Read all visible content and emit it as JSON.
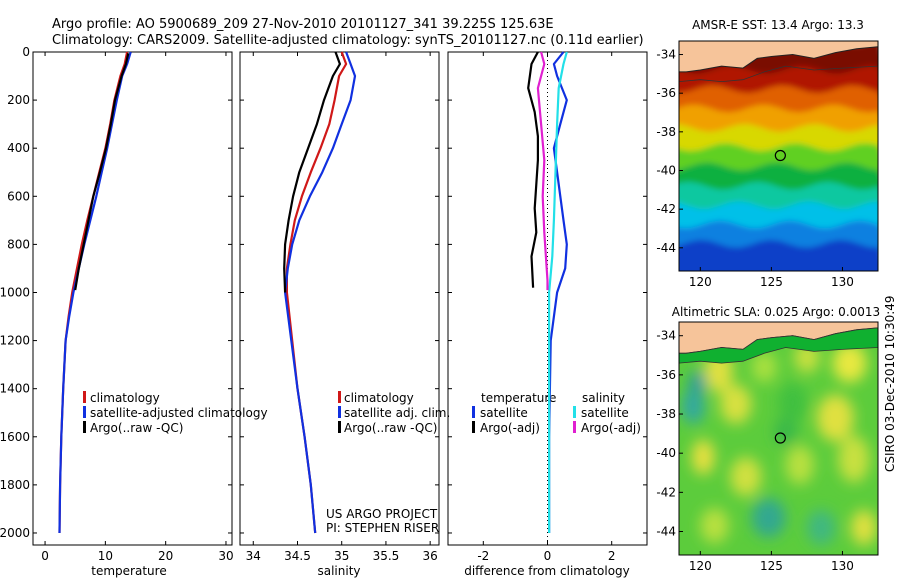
{
  "header": {
    "line1": "Argo profile: AO 5900689_209 27-Nov-2010 20101127_341 39.225S 125.63E",
    "line2": "Climatology: CARS2009. Satellite-adjusted climatology: synTS_20101127.nc (0.11d earlier)"
  },
  "footer": {
    "project": "US ARGO PROJECT",
    "pi": "PI: STEPHEN RISER",
    "stamp": "CSIRO 03-Dec-2010 10:30:49"
  },
  "colors": {
    "climatology": "#d01818",
    "satellite": "#1030e0",
    "argo": "#000000",
    "sat_sal": "#22e0e8",
    "argo_sal": "#e020d0",
    "land": "#f6c49a",
    "coast": "#222222"
  },
  "chart_data": [
    {
      "id": "temperature",
      "type": "line",
      "xlabel": "temperature",
      "ylabel": "",
      "xlim": [
        -2,
        31
      ],
      "ylim": [
        2050,
        0
      ],
      "xticks": [
        0,
        10,
        20,
        30
      ],
      "yticks": [
        0,
        200,
        400,
        600,
        800,
        1000,
        1200,
        1400,
        1600,
        1800,
        2000
      ],
      "legend": [
        "climatology",
        "satellite-adjusted climatology",
        "Argo(..raw -QC)"
      ],
      "series": [
        {
          "key": "climatology",
          "x": [
            13.6,
            13.2,
            12.5,
            11.5,
            10.8,
            10.0,
            9.0,
            8.0,
            7.0,
            6.1,
            5.3,
            4.5,
            3.9,
            3.4,
            3.0,
            2.7,
            2.5,
            2.4
          ],
          "y": [
            0,
            50,
            100,
            200,
            300,
            400,
            500,
            600,
            700,
            800,
            900,
            1000,
            1100,
            1200,
            1400,
            1600,
            1800,
            2000
          ]
        },
        {
          "key": "satellite",
          "x": [
            14.2,
            13.6,
            12.8,
            11.9,
            11.1,
            10.3,
            9.4,
            8.5,
            7.5,
            6.5,
            5.6,
            4.7,
            4.0,
            3.4,
            3.0,
            2.7,
            2.5,
            2.4
          ],
          "y": [
            0,
            50,
            100,
            200,
            300,
            400,
            500,
            600,
            700,
            800,
            900,
            1000,
            1100,
            1200,
            1400,
            1600,
            1800,
            2000
          ]
        },
        {
          "key": "argo",
          "x": [
            13.8,
            13.4,
            12.7,
            11.6,
            10.9,
            10.1,
            9.1,
            8.0,
            7.2,
            6.4,
            5.6,
            5.0
          ],
          "y": [
            5,
            50,
            100,
            200,
            300,
            400,
            500,
            600,
            700,
            800,
            900,
            990
          ]
        }
      ]
    },
    {
      "id": "salinity",
      "type": "line",
      "xlabel": "salinity",
      "ylabel": "",
      "xlim": [
        33.85,
        36.1
      ],
      "ylim": [
        2050,
        0
      ],
      "xticks": [
        34,
        34.5,
        35,
        35.5,
        36
      ],
      "legend": [
        "climatology",
        "satellite adj. clim.",
        "Argo(..raw -QC)"
      ],
      "series": [
        {
          "key": "climatology",
          "x": [
            35.0,
            35.05,
            34.97,
            34.92,
            34.86,
            34.76,
            34.65,
            34.55,
            34.47,
            34.42,
            34.38,
            34.38,
            34.44,
            34.5,
            34.58,
            34.65,
            34.7
          ],
          "y": [
            0,
            50,
            100,
            200,
            300,
            400,
            500,
            600,
            700,
            800,
            900,
            1000,
            1200,
            1400,
            1600,
            1800,
            2000
          ]
        },
        {
          "key": "satellite",
          "x": [
            35.05,
            35.1,
            35.15,
            35.1,
            35.0,
            34.9,
            34.78,
            34.64,
            34.52,
            34.44,
            34.39,
            34.36,
            34.43,
            34.5,
            34.58,
            34.65,
            34.7
          ],
          "y": [
            0,
            50,
            100,
            200,
            300,
            400,
            500,
            600,
            700,
            800,
            900,
            1000,
            1200,
            1400,
            1600,
            1800,
            2000
          ]
        },
        {
          "key": "argo",
          "x": [
            34.93,
            34.98,
            34.9,
            34.8,
            34.72,
            34.62,
            34.52,
            34.45,
            34.4,
            34.36,
            34.35,
            34.36
          ],
          "y": [
            0,
            50,
            100,
            200,
            300,
            400,
            500,
            600,
            700,
            800,
            900,
            1000
          ]
        }
      ]
    },
    {
      "id": "difference",
      "type": "line",
      "xlabel": "difference from climatology",
      "ylabel": "",
      "xlim": [
        -3.1,
        3.1
      ],
      "ylim": [
        2050,
        0
      ],
      "xticks": [
        -2,
        0,
        2
      ],
      "legend_temp": [
        "temperature",
        "satellite",
        "Argo(-adj)"
      ],
      "legend_sal": [
        "salinity",
        "satellite",
        "Argo(-adj)"
      ],
      "series": [
        {
          "key": "satellite",
          "x": [
            0.5,
            0.2,
            0.3,
            0.6,
            0.4,
            0.2,
            0.3,
            0.4,
            0.5,
            0.6,
            0.55,
            0.3,
            0.1,
            0.05,
            0.05
          ],
          "y": [
            0,
            50,
            100,
            200,
            300,
            400,
            500,
            600,
            700,
            800,
            900,
            1000,
            1200,
            1600,
            2000
          ]
        },
        {
          "key": "argo",
          "x": [
            -0.3,
            -0.5,
            -0.6,
            -0.4,
            -0.3,
            -0.3,
            -0.35,
            -0.4,
            -0.35,
            -0.5,
            -0.45
          ],
          "y": [
            0,
            50,
            150,
            250,
            350,
            450,
            550,
            650,
            750,
            850,
            980
          ]
        },
        {
          "key": "sat_sal",
          "x": [
            0.6,
            0.5,
            0.35,
            0.3,
            0.25,
            0.2,
            0.15,
            0.05,
            0.05,
            0.05,
            0.05
          ],
          "y": [
            0,
            50,
            150,
            300,
            500,
            700,
            850,
            1000,
            1200,
            1600,
            2000
          ]
        },
        {
          "key": "argo_sal",
          "x": [
            -0.2,
            -0.1,
            -0.3,
            -0.2,
            -0.1,
            -0.15,
            -0.1,
            -0.05,
            0.0,
            0.0
          ],
          "y": [
            0,
            50,
            150,
            300,
            450,
            600,
            750,
            850,
            950,
            990
          ]
        }
      ]
    },
    {
      "id": "sst_map",
      "type": "heatmap",
      "title": "AMSR-E SST: 13.4 Argo: 13.3",
      "xlim": [
        118.5,
        132.5
      ],
      "ylim": [
        -45.2,
        -33.3
      ],
      "xticks": [
        120,
        125,
        130
      ],
      "yticks": [
        -34,
        -36,
        -38,
        -40,
        -42,
        -44
      ],
      "marker": {
        "lon": 125.63,
        "lat": -39.225
      },
      "bands": [
        {
          "lat": -33.5,
          "color": "#7a0a00"
        },
        {
          "lat": -35.0,
          "color": "#b01800"
        },
        {
          "lat": -36.0,
          "color": "#e06000"
        },
        {
          "lat": -37.0,
          "color": "#f0a000"
        },
        {
          "lat": -38.0,
          "color": "#d8d800"
        },
        {
          "lat": -39.0,
          "color": "#60d020"
        },
        {
          "lat": -40.0,
          "color": "#10b040"
        },
        {
          "lat": -41.0,
          "color": "#10c8a0"
        },
        {
          "lat": -42.0,
          "color": "#00c0e8"
        },
        {
          "lat": -43.0,
          "color": "#1080e0"
        },
        {
          "lat": -44.0,
          "color": "#1040c8"
        },
        {
          "lat": -45.2,
          "color": "#0a28a0"
        }
      ]
    },
    {
      "id": "sla_map",
      "type": "heatmap",
      "title": "Altimetric SLA: 0.025 Argo: 0.0013",
      "xlim": [
        118.5,
        132.5
      ],
      "ylim": [
        -45.2,
        -33.3
      ],
      "xticks": [
        120,
        125,
        130
      ],
      "yticks": [
        -34,
        -36,
        -38,
        -40,
        -42,
        -44
      ],
      "marker": {
        "lon": 125.63,
        "lat": -39.225
      }
    }
  ]
}
